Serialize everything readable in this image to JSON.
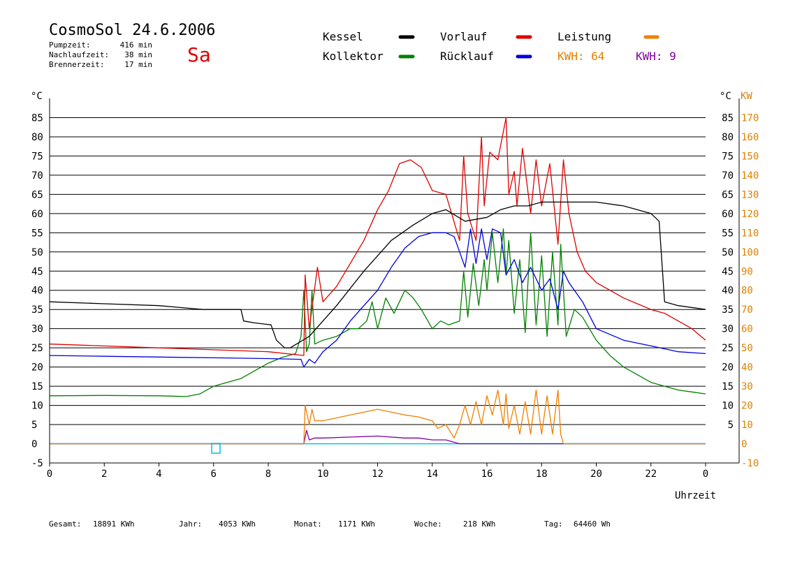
{
  "header": {
    "title": "CosmoSol 24.6.2006",
    "day": "Sa",
    "stats": [
      {
        "label": "Pumpzeit:",
        "value": "416 min"
      },
      {
        "label": "Nachlaufzeit:",
        "value": "38 min"
      },
      {
        "label": "Brennerzeit:",
        "value": "17 min"
      }
    ]
  },
  "legend": {
    "items": [
      {
        "label": "Kessel",
        "color": "#000000"
      },
      {
        "label": "Vorlauf",
        "color": "#e00000"
      },
      {
        "label": "Leistung",
        "color": "#f08000"
      },
      {
        "label": "Kollektor",
        "color": "#008000"
      },
      {
        "label": "Rücklauf",
        "color": "#0000e0"
      }
    ],
    "kwh_orange": "KWH: 64",
    "kwh_purple": "KWH: 9",
    "kwh_orange_color": "#e08000",
    "kwh_purple_color": "#8000a0"
  },
  "axes": {
    "left_unit": "°C",
    "right_unit_c": "°C",
    "right_unit_kw": "KW",
    "xlabel": "Uhrzeit"
  },
  "footer": {
    "items": [
      {
        "label": "Gesamt:",
        "value": "18891 KWh"
      },
      {
        "label": "Jahr:",
        "value": "4053 KWh"
      },
      {
        "label": "Monat:",
        "value": "1171 KWh"
      },
      {
        "label": "Woche:",
        "value": "218 KWh"
      },
      {
        "label": "Tag:",
        "value": "64460 Wh"
      }
    ]
  },
  "chart_data": {
    "type": "line",
    "xlabel": "Uhrzeit",
    "ylabel": "°C",
    "y2label": "KW",
    "xlim": [
      0,
      24
    ],
    "ylim": [
      -5,
      90
    ],
    "y2lim": [
      -10,
      180
    ],
    "x_ticks": [
      "0",
      "2",
      "4",
      "6",
      "8",
      "10",
      "12",
      "14",
      "16",
      "18",
      "20",
      "22",
      "0"
    ],
    "y_ticks_left": [
      "-5",
      "0",
      "5",
      "10",
      "15",
      "20",
      "25",
      "30",
      "35",
      "40",
      "45",
      "50",
      "55",
      "60",
      "65",
      "70",
      "75",
      "80",
      "85"
    ],
    "y_ticks_right_c": [
      "5",
      "10",
      "15",
      "20",
      "25",
      "30",
      "35",
      "40",
      "45",
      "50",
      "55",
      "60",
      "65",
      "70",
      "75",
      "80",
      "85"
    ],
    "y_ticks_right_kw": [
      "-10",
      "0",
      "10",
      "20",
      "30",
      "40",
      "50",
      "60",
      "70",
      "80",
      "90",
      "100",
      "110",
      "120",
      "130",
      "140",
      "150",
      "160",
      "170"
    ],
    "grid": true,
    "series": [
      {
        "name": "Kessel",
        "color": "#000000",
        "x": [
          0,
          2,
          4,
          5.6,
          7,
          7.1,
          7.5,
          8.1,
          8.3,
          8.6,
          8.8,
          9.5,
          10.5,
          11.5,
          12,
          12.5,
          13.3,
          14,
          14.5,
          15.2,
          16,
          16.5,
          17,
          17.5,
          18,
          19,
          20,
          21,
          22,
          22.3,
          22.5,
          23,
          24
        ],
        "y": [
          37,
          36.5,
          36,
          35,
          35,
          32,
          31.5,
          31,
          27,
          25,
          25,
          28,
          36,
          45,
          49,
          53,
          57,
          60,
          61,
          58,
          59,
          61,
          62,
          62,
          63,
          63,
          63,
          62,
          60,
          58,
          37,
          36,
          35
        ]
      },
      {
        "name": "Vorlauf",
        "color": "#e00000",
        "x": [
          0,
          2,
          4,
          6,
          8,
          9.3,
          9.35,
          9.5,
          9.8,
          10,
          10.5,
          11,
          11.5,
          12,
          12.4,
          12.8,
          13.2,
          13.6,
          14,
          14.5,
          15,
          15.15,
          15.3,
          15.6,
          15.8,
          15.9,
          16.1,
          16.4,
          16.7,
          16.8,
          17,
          17.1,
          17.3,
          17.6,
          17.8,
          18,
          18.3,
          18.6,
          18.8,
          19,
          19.3,
          19.6,
          20,
          20.5,
          21,
          21.5,
          22,
          22.5,
          23,
          23.5,
          24
        ],
        "y": [
          26,
          25.5,
          25,
          24.5,
          24,
          23,
          44,
          30,
          46,
          37,
          41,
          47,
          53,
          61,
          66,
          73,
          74,
          72,
          66,
          65,
          53,
          75,
          60,
          53,
          80,
          62,
          76,
          74,
          85,
          65,
          71,
          62,
          77,
          60,
          74,
          62,
          73,
          52,
          74,
          60,
          50,
          45,
          42,
          40,
          38,
          36.5,
          35,
          34,
          32,
          30,
          27
        ]
      },
      {
        "name": "Rücklauf",
        "color": "#0000e0",
        "x": [
          0,
          2,
          4,
          6,
          8,
          9.2,
          9.3,
          9.5,
          9.7,
          10,
          10.5,
          11,
          11.5,
          12,
          12.5,
          13,
          13.5,
          14,
          14.5,
          14.8,
          15,
          15.2,
          15.4,
          15.6,
          15.8,
          16,
          16.2,
          16.5,
          16.7,
          17,
          17.3,
          17.6,
          18,
          18.3,
          18.6,
          18.8,
          19,
          19.5,
          20,
          21,
          22,
          23,
          24
        ],
        "y": [
          23,
          22.8,
          22.6,
          22.4,
          22.2,
          22,
          20,
          22,
          21,
          24,
          27,
          32,
          36,
          40,
          46,
          51,
          54,
          55,
          55,
          54,
          50,
          46,
          56,
          47,
          56,
          48,
          56,
          55,
          44,
          48,
          42,
          46,
          40,
          43,
          35,
          45,
          42,
          37,
          30,
          27,
          25.5,
          24,
          23.5
        ]
      },
      {
        "name": "Kollektor",
        "color": "#008000",
        "x": [
          0,
          2,
          4,
          5,
          5.5,
          6,
          6.5,
          7,
          7.5,
          8,
          8.5,
          9,
          9.2,
          9.3,
          9.4,
          9.5,
          9.6,
          9.7,
          10,
          10.5,
          11,
          11.3,
          11.6,
          11.8,
          12,
          12.3,
          12.6,
          13,
          13.3,
          13.6,
          14,
          14.3,
          14.6,
          15,
          15.15,
          15.3,
          15.5,
          15.7,
          15.9,
          16,
          16.2,
          16.4,
          16.6,
          16.7,
          16.8,
          17,
          17.2,
          17.4,
          17.6,
          17.8,
          18,
          18.2,
          18.4,
          18.6,
          18.7,
          18.9,
          19.2,
          19.5,
          20,
          20.5,
          21,
          21.5,
          22,
          22.5,
          23,
          23.5,
          24
        ],
        "y": [
          12.5,
          12.6,
          12.5,
          12.3,
          13,
          15,
          16,
          17,
          19,
          21,
          22.5,
          23.5,
          28,
          40,
          24,
          26,
          40,
          26,
          27,
          28,
          30,
          30,
          32,
          37,
          30,
          38,
          34,
          40,
          38,
          35,
          30,
          32,
          31,
          32,
          45,
          33,
          47,
          36,
          48,
          40,
          55,
          42,
          56,
          44,
          53,
          34,
          48,
          29,
          55,
          31,
          49,
          28,
          50,
          31,
          52,
          28,
          35,
          33,
          27,
          23,
          20,
          18,
          16,
          15,
          14,
          13.5,
          13
        ]
      },
      {
        "name": "Leistung",
        "axis": "kw",
        "color": "#f08000",
        "x": [
          0,
          9.3,
          9.35,
          9.5,
          9.6,
          9.7,
          10,
          11,
          12,
          13,
          13.5,
          14,
          14.2,
          14.5,
          14.8,
          15,
          15.2,
          15.4,
          15.6,
          15.8,
          16,
          16.2,
          16.4,
          16.6,
          16.7,
          16.8,
          17,
          17.2,
          17.4,
          17.6,
          17.8,
          18,
          18.2,
          18.4,
          18.6,
          18.7,
          18.8,
          24
        ],
        "y": [
          0,
          0,
          20,
          10,
          18,
          12,
          12,
          15,
          18,
          15,
          14,
          12,
          8,
          10,
          3,
          10,
          20,
          10,
          22,
          10,
          25,
          15,
          28,
          10,
          26,
          8,
          20,
          5,
          22,
          5,
          28,
          5,
          25,
          5,
          28,
          5,
          0,
          0
        ]
      },
      {
        "name": "KWH",
        "axis": "kw",
        "color": "#8000a0",
        "x": [
          0,
          9.3,
          9.4,
          9.5,
          9.7,
          10,
          11,
          12,
          13,
          13.5,
          14,
          14.5,
          15,
          24
        ],
        "y": [
          0,
          0,
          7,
          2,
          3,
          3,
          3.5,
          4,
          3,
          3,
          2,
          2,
          0,
          0
        ]
      }
    ]
  }
}
